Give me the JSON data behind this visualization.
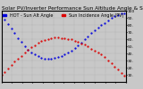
{
  "title": "Solar PV/Inverter Performance Sun Altitude Angle & Sun Incidence Angle on PV Panels",
  "legend_labels": [
    "HOT - Sun Alt Angle",
    "Sun Incidence Angle (PV)"
  ],
  "legend_colors": [
    "#0000dd",
    "#dd0000"
  ],
  "blue_x": [
    0.0,
    0.05,
    0.1,
    0.15,
    0.18,
    0.22,
    0.27,
    0.32,
    0.37,
    0.42,
    0.47,
    0.52,
    0.57,
    0.62,
    0.67,
    0.72,
    0.77,
    0.82,
    0.87,
    0.92,
    0.97,
    1.0
  ],
  "blue_y": [
    92,
    82,
    70,
    58,
    52,
    44,
    38,
    34,
    32,
    33,
    36,
    40,
    45,
    52,
    60,
    68,
    76,
    82,
    88,
    93,
    96,
    97
  ],
  "red_x": [
    0.0,
    0.05,
    0.1,
    0.15,
    0.18,
    0.22,
    0.27,
    0.32,
    0.37,
    0.42,
    0.47,
    0.52,
    0.57,
    0.62,
    0.67,
    0.72,
    0.77,
    0.82,
    0.87,
    0.92,
    0.97,
    1.0
  ],
  "red_y": [
    10,
    18,
    27,
    35,
    40,
    46,
    52,
    57,
    60,
    62,
    62,
    61,
    59,
    56,
    52,
    47,
    42,
    36,
    28,
    20,
    12,
    8
  ],
  "xlim": [
    0,
    1
  ],
  "ylim": [
    0,
    100
  ],
  "ytick_values": [
    10,
    20,
    30,
    40,
    50,
    60,
    70,
    80,
    90,
    100
  ],
  "ytick_labels": [
    "10.",
    "20.",
    "30.",
    "40.",
    "50.",
    "60.",
    "70.",
    "80.",
    "90.",
    "100"
  ],
  "bg_color": "#c8c8c8",
  "plot_bg_color": "#c8c8c8",
  "title_fontsize": 4.2,
  "tick_fontsize": 3.2,
  "legend_fontsize": 3.5,
  "marker_size": 1.2
}
